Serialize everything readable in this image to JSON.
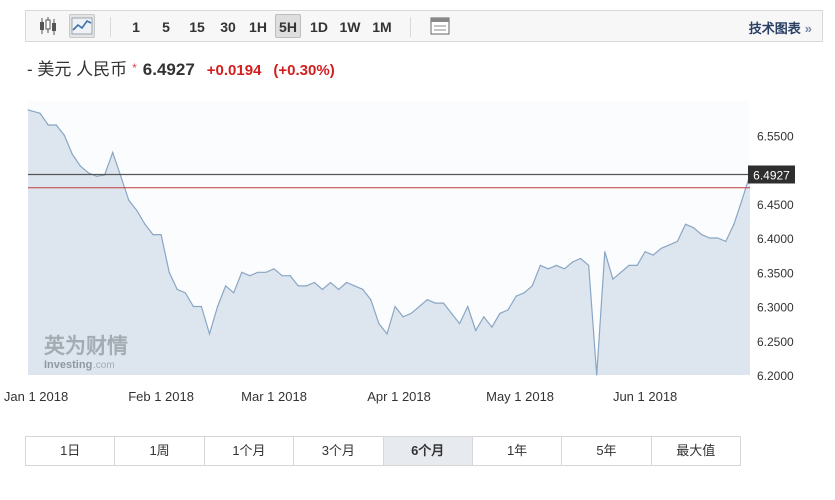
{
  "toolbar": {
    "intervals": [
      "1",
      "5",
      "15",
      "30",
      "1H",
      "5H",
      "1D",
      "1W",
      "1M"
    ],
    "active_interval": "5H",
    "right_link": "技术图表",
    "right_arrow": "»",
    "icons": [
      "candlestick-icon",
      "line-chart-icon",
      "calendar-panel-icon"
    ]
  },
  "quote": {
    "name": "- 美元 人民币",
    "star": "*",
    "price": "6.4927",
    "change": "+0.0194",
    "change_pct": "(+0.30%)",
    "up_color": "#d21e1e"
  },
  "watermark": {
    "cn": "英为财情",
    "en": "Investing",
    "suffix": ".com"
  },
  "range_tabs": {
    "items": [
      "1日",
      "1周",
      "1个月",
      "3个月",
      "6个月",
      "1年",
      "5年",
      "最大值"
    ],
    "active": "6个月"
  },
  "chart_data": {
    "type": "area",
    "series": [
      {
        "name": "",
        "x": [
          "2017-12-30",
          "2018-01-02",
          "2018-01-04",
          "2018-01-06",
          "2018-01-08",
          "2018-01-10",
          "2018-01-12",
          "2018-01-14",
          "2018-01-16",
          "2018-01-18",
          "2018-01-20",
          "2018-01-22",
          "2018-01-24",
          "2018-01-26",
          "2018-01-28",
          "2018-01-30",
          "2018-02-01",
          "2018-02-03",
          "2018-02-05",
          "2018-02-07",
          "2018-02-09",
          "2018-02-11",
          "2018-02-13",
          "2018-02-15",
          "2018-02-17",
          "2018-02-19",
          "2018-02-21",
          "2018-02-23",
          "2018-02-25",
          "2018-02-27",
          "2018-03-01",
          "2018-03-03",
          "2018-03-05",
          "2018-03-07",
          "2018-03-09",
          "2018-03-11",
          "2018-03-13",
          "2018-03-15",
          "2018-03-17",
          "2018-03-19",
          "2018-03-21",
          "2018-03-23",
          "2018-03-25",
          "2018-03-27",
          "2018-03-29",
          "2018-03-31",
          "2018-04-02",
          "2018-04-04",
          "2018-04-06",
          "2018-04-08",
          "2018-04-10",
          "2018-04-12",
          "2018-04-14",
          "2018-04-16",
          "2018-04-18",
          "2018-04-20",
          "2018-04-22",
          "2018-04-24",
          "2018-04-26",
          "2018-04-28",
          "2018-04-30",
          "2018-05-02",
          "2018-05-04",
          "2018-05-06",
          "2018-05-08",
          "2018-05-10",
          "2018-05-12",
          "2018-05-14",
          "2018-05-16",
          "2018-05-18",
          "2018-05-20",
          "2018-05-22",
          "2018-05-24",
          "2018-05-26",
          "2018-05-28",
          "2018-05-30",
          "2018-06-01",
          "2018-06-03",
          "2018-06-05",
          "2018-06-07",
          "2018-06-09",
          "2018-06-11",
          "2018-06-13",
          "2018-06-15",
          "2018-06-17",
          "2018-06-19",
          "2018-06-21",
          "2018-06-23",
          "2018-06-25",
          "2018-06-27"
        ],
        "y": [
          6.587,
          6.582,
          6.565,
          6.565,
          6.55,
          6.522,
          6.505,
          6.495,
          6.49,
          6.492,
          6.525,
          6.49,
          6.455,
          6.44,
          6.42,
          6.405,
          6.405,
          6.35,
          6.325,
          6.32,
          6.3,
          6.3,
          6.26,
          6.3,
          6.33,
          6.32,
          6.35,
          6.345,
          6.35,
          6.35,
          6.355,
          6.345,
          6.345,
          6.33,
          6.33,
          6.335,
          6.325,
          6.335,
          6.325,
          6.335,
          6.33,
          6.325,
          6.31,
          6.275,
          6.26,
          6.3,
          6.285,
          6.29,
          6.3,
          6.31,
          6.305,
          6.305,
          6.29,
          6.275,
          6.3,
          6.265,
          6.285,
          6.27,
          6.29,
          6.295,
          6.315,
          6.32,
          6.33,
          6.36,
          6.355,
          6.36,
          6.355,
          6.365,
          6.37,
          6.36,
          6.2,
          6.38,
          6.34,
          6.35,
          6.36,
          6.36,
          6.38,
          6.375,
          6.385,
          6.39,
          6.395,
          6.42,
          6.415,
          6.405,
          6.4,
          6.4,
          6.395,
          6.42,
          6.455,
          6.4927
        ]
      }
    ],
    "x_ticks": [
      "Jan 1 2018",
      "Feb 1 2018",
      "Mar 1 2018",
      "Apr 1 2018",
      "May 1 2018",
      "Jun 1 2018"
    ],
    "x_tick_values": [
      "2018-01-01",
      "2018-02-01",
      "2018-03-01",
      "2018-04-01",
      "2018-05-01",
      "2018-06-01"
    ],
    "y_ticks": [
      "6.5500",
      "6.5000",
      "6.4500",
      "6.4000",
      "6.3500",
      "6.3000",
      "6.2500",
      "6.2000"
    ],
    "ylim": [
      6.2,
      6.6
    ],
    "current_value": 6.4927,
    "current_label": "6.4927",
    "reference_value": 6.4733,
    "line_color": "#8aa6c4",
    "fill_color": "#dde6ef",
    "current_line_color": "#555555",
    "reference_line_color": "#c23b3b",
    "label_bg": "#2e2e2e"
  }
}
